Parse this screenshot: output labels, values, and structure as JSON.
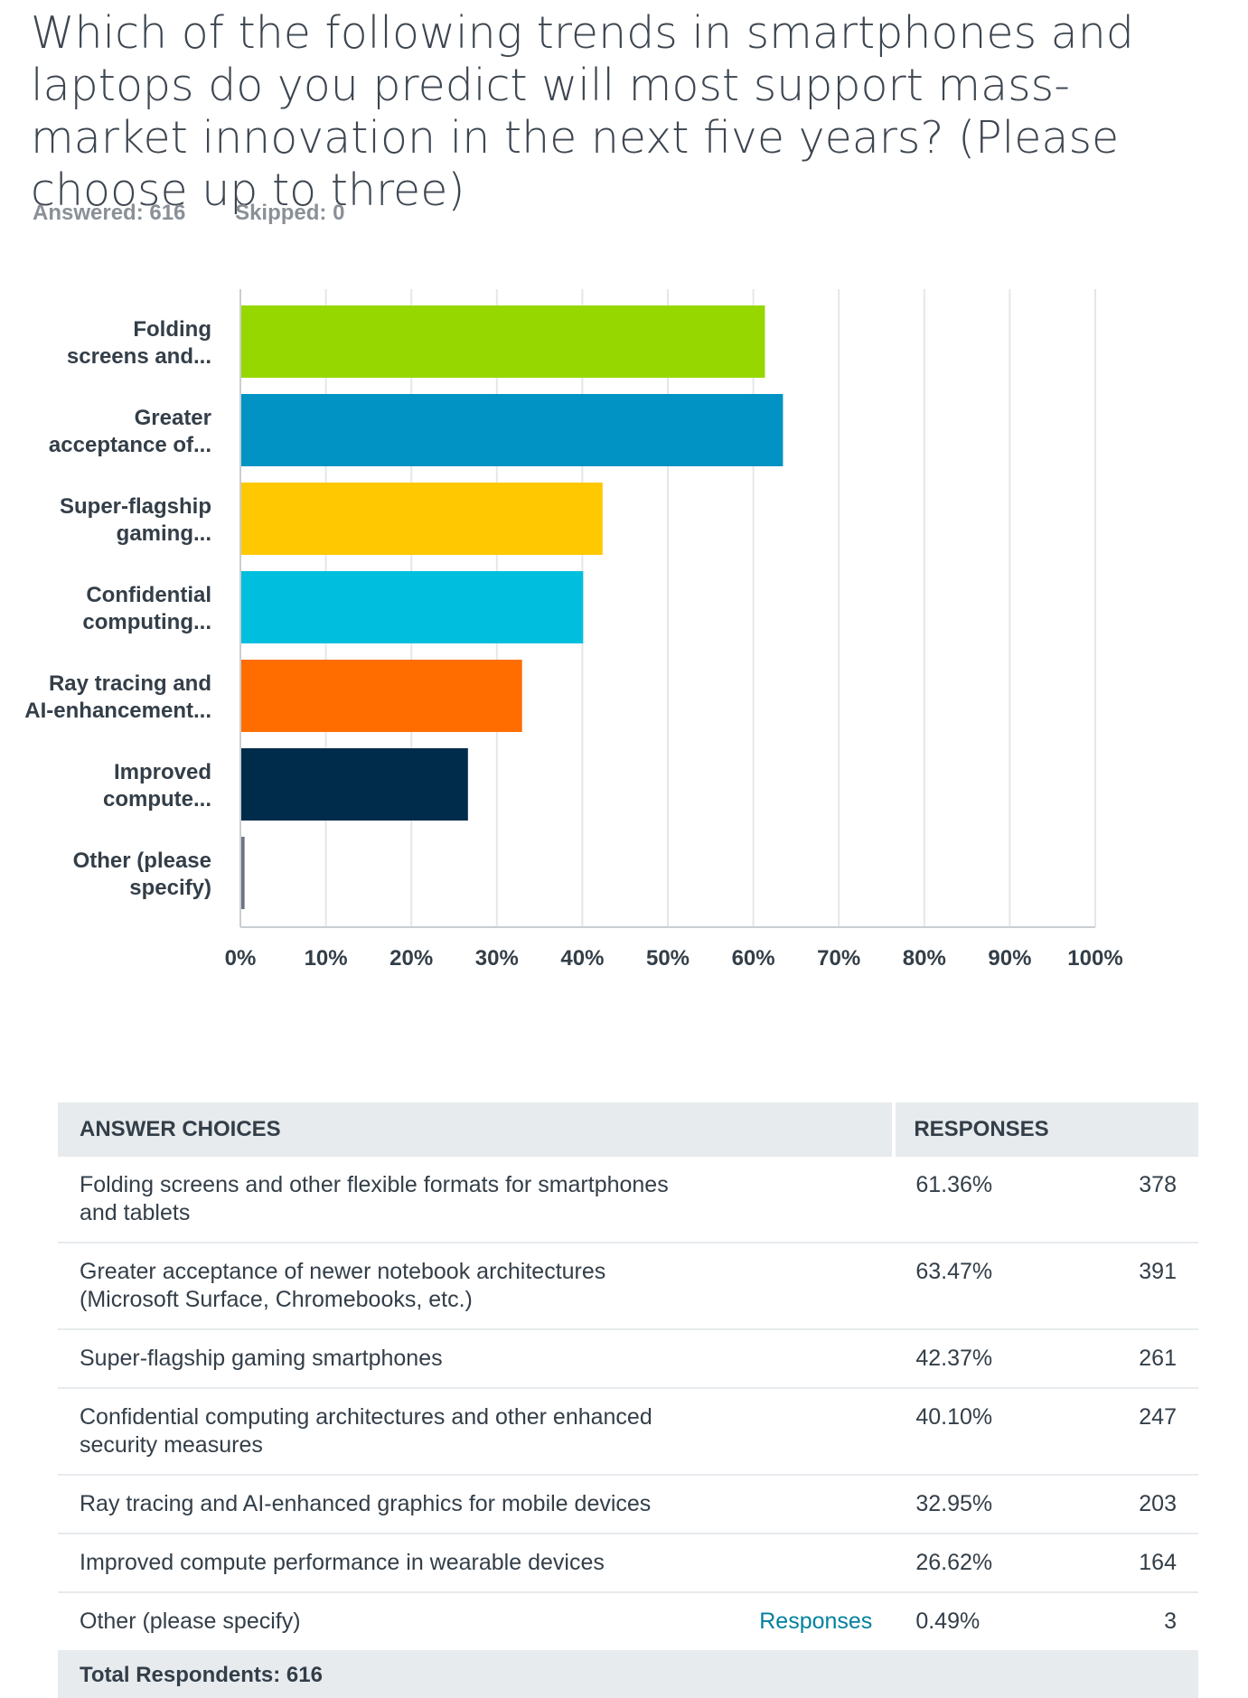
{
  "question": {
    "title": "Which of the following trends in smartphones and laptops do you predict will most support mass-market innovation in the next five years? (Please choose up to three)",
    "answered_label": "Answered: 616",
    "skipped_label": "Skipped: 0"
  },
  "chart_data": {
    "type": "bar",
    "orientation": "horizontal",
    "categories": [
      [
        "Folding",
        "screens and..."
      ],
      [
        "Greater",
        "acceptance of..."
      ],
      [
        "Super-flagship",
        "gaming..."
      ],
      [
        "Confidential",
        "computing..."
      ],
      [
        "Ray tracing and",
        "AI-enhancement..."
      ],
      [
        "Improved",
        "compute..."
      ],
      [
        "Other (please",
        "specify)"
      ]
    ],
    "values": [
      61.36,
      63.47,
      42.37,
      40.1,
      32.95,
      26.62,
      0.49
    ],
    "colors": [
      "#97d700",
      "#0093c4",
      "#ffc800",
      "#00bfde",
      "#ff6d00",
      "#002c4b",
      "#6b7480"
    ],
    "xlim": [
      0,
      100
    ],
    "xticks": [
      "0%",
      "10%",
      "20%",
      "30%",
      "40%",
      "50%",
      "60%",
      "70%",
      "80%",
      "90%",
      "100%"
    ],
    "grid": true
  },
  "table": {
    "header_choices": "ANSWER CHOICES",
    "header_responses": "RESPONSES",
    "responses_link": "Responses",
    "rows": [
      {
        "choice": "Folding screens and other flexible formats for smartphones and tablets",
        "pct": "61.36%",
        "count": "378"
      },
      {
        "choice": "Greater acceptance of newer notebook architectures (Microsoft Surface, Chromebooks, etc.)",
        "pct": "63.47%",
        "count": "391"
      },
      {
        "choice": "Super-flagship gaming smartphones",
        "pct": "42.37%",
        "count": "261"
      },
      {
        "choice": "Confidential computing architectures and other enhanced security measures",
        "pct": "40.10%",
        "count": "247"
      },
      {
        "choice": "Ray tracing and AI-enhanced graphics for mobile devices",
        "pct": "32.95%",
        "count": "203"
      },
      {
        "choice": "Improved compute performance in wearable devices",
        "pct": "26.62%",
        "count": "164"
      },
      {
        "choice": "Other (please specify)",
        "pct": "0.49%",
        "count": "3"
      }
    ],
    "total_label": "Total Respondents: 616"
  }
}
